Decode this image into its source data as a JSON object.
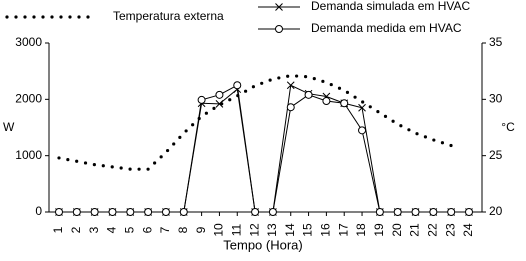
{
  "chart_data": {
    "type": "line",
    "x_label": "Tempo (Hora)",
    "y_label": "W",
    "y2_label": "°C",
    "categories": [
      "1",
      "2",
      "3",
      "4",
      "5",
      "6",
      "7",
      "8",
      "9",
      "10",
      "11",
      "12",
      "13",
      "14",
      "15",
      "16",
      "17",
      "18",
      "19",
      "20",
      "21",
      "22",
      "23",
      "24"
    ],
    "ylim": [
      0,
      3000
    ],
    "yticks": [
      0,
      1000,
      2000,
      3000
    ],
    "y2lim": [
      20,
      35
    ],
    "y2ticks": [
      20,
      25,
      30,
      35
    ],
    "series": [
      {
        "name": "Temperatura externa",
        "color": "#000000",
        "style": "dotted",
        "axis": "y2",
        "values": [
          24.8,
          24.5,
          24.2,
          24.0,
          23.8,
          23.8,
          25.3,
          27.0,
          28.5,
          29.5,
          30.3,
          31.2,
          31.8,
          32.1,
          32.0,
          31.5,
          30.8,
          29.8,
          28.8,
          27.8,
          27.0,
          26.4,
          25.9,
          null
        ]
      },
      {
        "name": "Demanda simulada em HVAC",
        "color": "#000000",
        "marker": "x",
        "values": [
          0,
          0,
          0,
          0,
          0,
          0,
          0,
          0,
          1930,
          1920,
          2180,
          0,
          0,
          2250,
          2100,
          2050,
          1930,
          1850,
          0,
          0,
          0,
          0,
          0,
          0
        ]
      },
      {
        "name": "Demanda medida em  HVAC",
        "color": "#000000",
        "marker": "o",
        "values": [
          0,
          0,
          0,
          0,
          0,
          0,
          0,
          0,
          1990,
          2080,
          2250,
          0,
          0,
          1860,
          2080,
          1970,
          1930,
          1450,
          0,
          0,
          0,
          0,
          0,
          0
        ]
      }
    ]
  }
}
